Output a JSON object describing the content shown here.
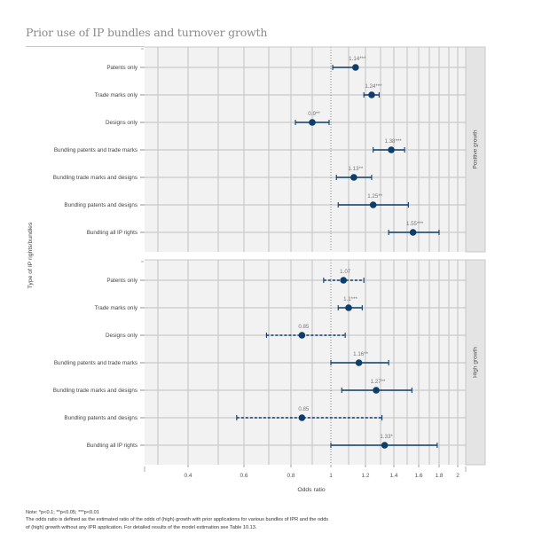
{
  "title": "Prior use of IP bundles and turnover growth",
  "chart_data": {
    "type": "forest",
    "title": "Prior use of IP bundles and turnover growth",
    "xlabel": "Odds ratio",
    "ylabel": "Type of IP rights/bundles",
    "x_scale": "log",
    "xlim": [
      0.27,
      2.2
    ],
    "x_ticks": [
      0.4,
      0.6,
      0.8,
      1,
      1.2,
      1.4,
      1.6,
      1.8,
      2
    ],
    "x_tick_labels": [
      "0.4",
      "0.6",
      "0.8",
      "1",
      "1.2",
      "1.4",
      "1.6",
      "1.8",
      "2"
    ],
    "x_minor_gridlines": [
      0.3,
      0.4,
      0.5,
      0.6,
      0.7,
      0.8,
      0.9,
      1.1,
      1.2,
      1.3,
      1.4,
      1.5,
      1.6,
      1.7,
      1.8,
      1.9,
      2.0
    ],
    "reference_line": 1,
    "grid": true,
    "categories": [
      "Patents only",
      "Trade marks only",
      "Designs only",
      "Bundling patents and trade marks",
      "Bundling trade marks and designs",
      "Bundling patents and designs",
      "Bundling all IP rights"
    ],
    "panels": [
      {
        "name": "Positive growth",
        "rows": [
          {
            "category": "Patents only",
            "value": 1.14,
            "lower": 1.01,
            "upper": 1.14,
            "label": "1.14***",
            "significant": true
          },
          {
            "category": "Trade marks only",
            "value": 1.24,
            "lower": 1.19,
            "upper": 1.29,
            "label": "1.24***",
            "significant": true
          },
          {
            "category": "Designs only",
            "value": 0.9,
            "lower": 0.82,
            "upper": 0.99,
            "label": "0.9**",
            "significant": true
          },
          {
            "category": "Bundling patents and trade marks",
            "value": 1.38,
            "lower": 1.25,
            "upper": 1.48,
            "label": "1.38***",
            "significant": true
          },
          {
            "category": "Bundling trade marks and designs",
            "value": 1.13,
            "lower": 1.03,
            "upper": 1.24,
            "label": "1.13**",
            "significant": true
          },
          {
            "category": "Bundling patents and designs",
            "value": 1.25,
            "lower": 1.04,
            "upper": 1.51,
            "label": "1.25**",
            "significant": true
          },
          {
            "category": "Bundling all IP rights",
            "value": 1.55,
            "lower": 1.36,
            "upper": 1.8,
            "label": "1.55***",
            "significant": true
          }
        ]
      },
      {
        "name": "High growth",
        "rows": [
          {
            "category": "Patents only",
            "value": 1.07,
            "lower": 0.96,
            "upper": 1.19,
            "label": "1.07",
            "significant": false
          },
          {
            "category": "Trade marks only",
            "value": 1.1,
            "lower": 1.04,
            "upper": 1.18,
            "label": "1.1***",
            "significant": true
          },
          {
            "category": "Designs only",
            "value": 0.85,
            "lower": 0.69,
            "upper": 1.08,
            "label": "0.85",
            "significant": false
          },
          {
            "category": "Bundling patents and trade marks",
            "value": 1.16,
            "lower": 1.0,
            "upper": 1.36,
            "label": "1.16**",
            "significant": true
          },
          {
            "category": "Bundling trade marks and designs",
            "value": 1.27,
            "lower": 1.06,
            "upper": 1.54,
            "label": "1.27**",
            "significant": true
          },
          {
            "category": "Bundling patents and designs",
            "value": 0.85,
            "lower": 0.57,
            "upper": 1.31,
            "label": "0.85",
            "significant": false
          },
          {
            "category": "Bundling all IP rights",
            "value": 1.33,
            "lower": 1.0,
            "upper": 1.78,
            "label": "1.33*",
            "significant": true
          }
        ]
      }
    ]
  },
  "colors": {
    "marker": "#0d3d6b",
    "panel_bg": "#f2f2f2",
    "grid": "#c9c9c9",
    "strip_bg": "#e4e4e4",
    "text": "#555555",
    "title": "#8a8a8a"
  },
  "note": {
    "line1": "Note: *p<0.1; **p<0.05; ***p<0.01",
    "line2": "The odds ratio is defined as the estimated ratio of the odds of (high) growth with prior applications for various bundles of IPR and the odds",
    "line3": "of (high) growth without any IPR application. For detailed results of the model estimation see Table 10.13."
  }
}
